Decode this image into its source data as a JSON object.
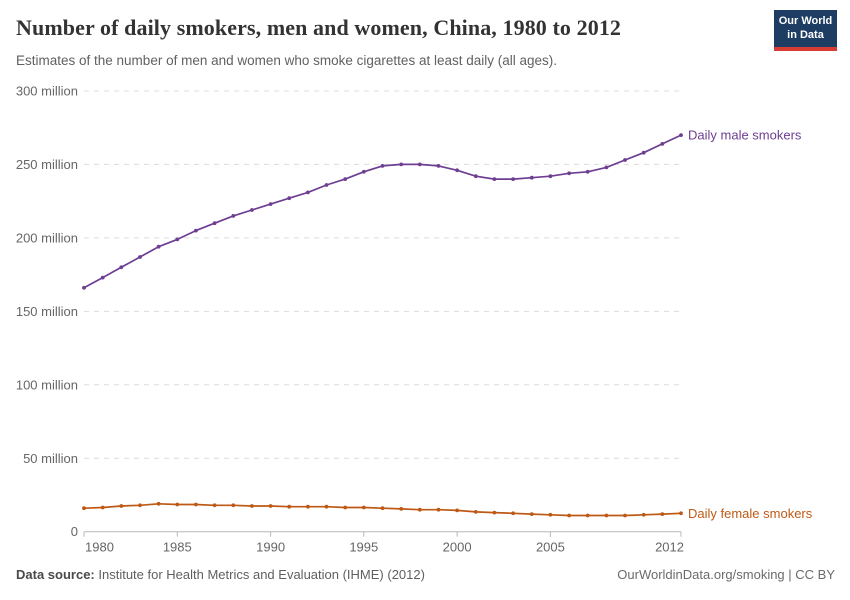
{
  "header": {
    "title": "Number of daily smokers, men and women, China, 1980 to 2012",
    "subtitle": "Estimates of the number of men and women who smoke cigarettes at least daily (all ages).",
    "logo": {
      "line1": "Our World",
      "line2": "in Data"
    }
  },
  "footer": {
    "datasource_label": "Data source:",
    "datasource_value": " Institute for Health Metrics and Evaluation (IHME) (2012)",
    "rights": "OurWorldinData.org/smoking | CC BY"
  },
  "theme": {
    "logo_bg": "#1d3d63",
    "logo_stripe": "#d73c34",
    "grid_color": "#dcdcdc",
    "axis_color": "#b8b8b8",
    "tick_label_color": "#666666"
  },
  "chart_data": {
    "type": "line",
    "title": "Number of daily smokers, men and women, China, 1980 to 2012",
    "unit": "million people",
    "grid": true,
    "legend_position": "end-of-line-labels",
    "x_range": [
      1980,
      2012
    ],
    "ylim": [
      0,
      300
    ],
    "x": [
      1980,
      1981,
      1982,
      1983,
      1984,
      1985,
      1986,
      1987,
      1988,
      1989,
      1990,
      1991,
      1992,
      1993,
      1994,
      1995,
      1996,
      1997,
      1998,
      1999,
      2000,
      2001,
      2002,
      2003,
      2004,
      2005,
      2006,
      2007,
      2008,
      2009,
      2010,
      2011,
      2012
    ],
    "yticks": [
      {
        "value": 0,
        "label": "0"
      },
      {
        "value": 50,
        "label": "50 million"
      },
      {
        "value": 100,
        "label": "100 million"
      },
      {
        "value": 150,
        "label": "150 million"
      },
      {
        "value": 200,
        "label": "200 million"
      },
      {
        "value": 250,
        "label": "250 million"
      },
      {
        "value": 300,
        "label": "300 million"
      }
    ],
    "xticks": [
      {
        "value": 1980,
        "label": "1980"
      },
      {
        "value": 1985,
        "label": "1985"
      },
      {
        "value": 1990,
        "label": "1990"
      },
      {
        "value": 1995,
        "label": "1995"
      },
      {
        "value": 2000,
        "label": "2000"
      },
      {
        "value": 2005,
        "label": "2005"
      },
      {
        "value": 2012,
        "label": "2012"
      }
    ],
    "series": [
      {
        "name": "Daily male smokers",
        "color": "#6d3e91",
        "values": [
          166,
          173,
          180,
          187,
          194,
          199,
          205,
          210,
          215,
          219,
          223,
          227,
          231,
          236,
          240,
          245,
          249,
          250,
          250,
          249,
          246,
          242,
          240,
          240,
          241,
          242,
          244,
          245,
          248,
          253,
          258,
          264,
          270
        ]
      },
      {
        "name": "Daily female smokers",
        "color": "#be5915",
        "values": [
          16,
          16.5,
          17.5,
          18,
          19,
          18.5,
          18.5,
          18,
          18,
          17.5,
          17.5,
          17,
          17,
          17,
          16.5,
          16.5,
          16,
          15.5,
          15,
          15,
          14.5,
          13.5,
          13,
          12.5,
          12,
          11.5,
          11,
          11,
          11,
          11,
          11.5,
          12,
          12.5
        ]
      }
    ]
  }
}
